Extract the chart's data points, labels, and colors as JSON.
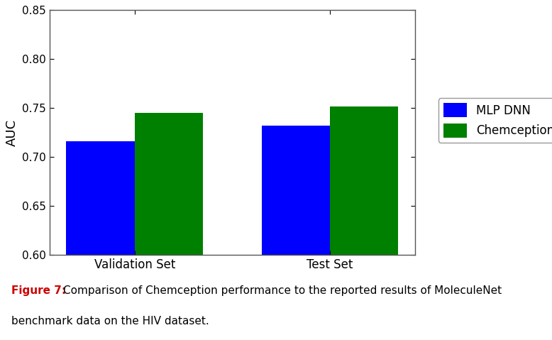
{
  "categories": [
    "Validation Set",
    "Test Set"
  ],
  "mlp_dnn_values": [
    0.716,
    0.732
  ],
  "chemception_values": [
    0.745,
    0.752
  ],
  "mlp_dnn_color": "#0000FF",
  "chemception_color": "#008000",
  "ylabel": "AUC",
  "ylim": [
    0.6,
    0.85
  ],
  "yticks": [
    0.6,
    0.65,
    0.7,
    0.75,
    0.8,
    0.85
  ],
  "legend_labels": [
    "MLP DNN",
    "Chemception"
  ],
  "bar_width": 0.35,
  "figure_width": 7.78,
  "figure_height": 4.79,
  "caption_bold": "Figure 7:",
  "caption_normal": "  Comparison of Chemception performance to the reported results of MoleculeNet\nbenchmark data on the HIV dataset."
}
